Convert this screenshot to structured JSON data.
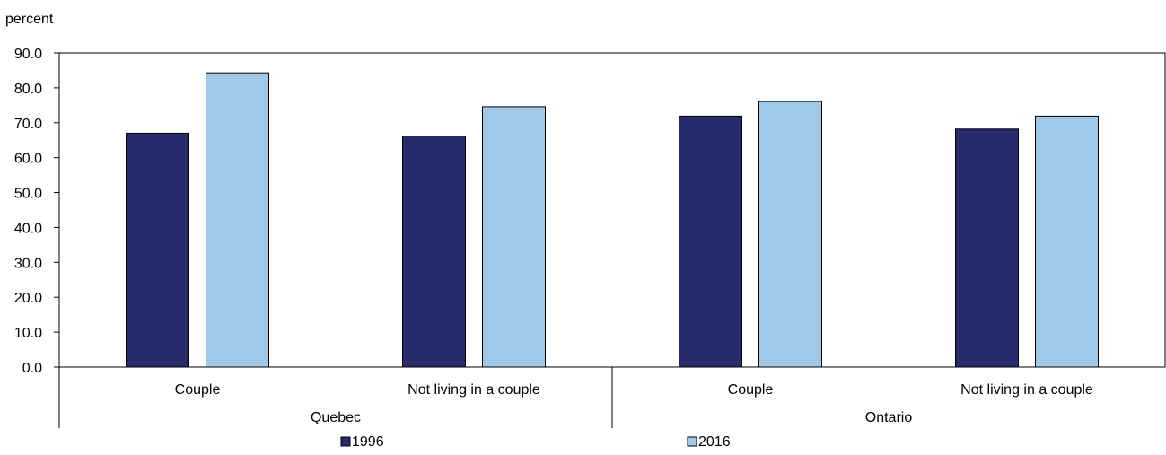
{
  "chart_data": {
    "type": "bar",
    "ylabel": "percent",
    "ylim": [
      0,
      90
    ],
    "ytick_step": 10,
    "ytick_labels": [
      "0.0",
      "10.0",
      "20.0",
      "30.0",
      "40.0",
      "50.0",
      "60.0",
      "70.0",
      "80.0",
      "90.0"
    ],
    "groups": [
      {
        "name": "Quebec",
        "categories": [
          "Couple",
          "Not living in a couple"
        ]
      },
      {
        "name": "Ontario",
        "categories": [
          "Couple",
          "Not living in a couple"
        ]
      }
    ],
    "categories": [
      "Couple",
      "Not living in a couple",
      "Couple",
      "Not living in a couple"
    ],
    "series": [
      {
        "name": "1996",
        "color": "#282b6b",
        "values": [
          67.0,
          66.2,
          71.9,
          68.2
        ]
      },
      {
        "name": "2016",
        "color": "#9fc8e9",
        "values": [
          84.3,
          74.6,
          76.1,
          71.9
        ]
      }
    ],
    "grid": false,
    "legend_position": "bottom"
  }
}
